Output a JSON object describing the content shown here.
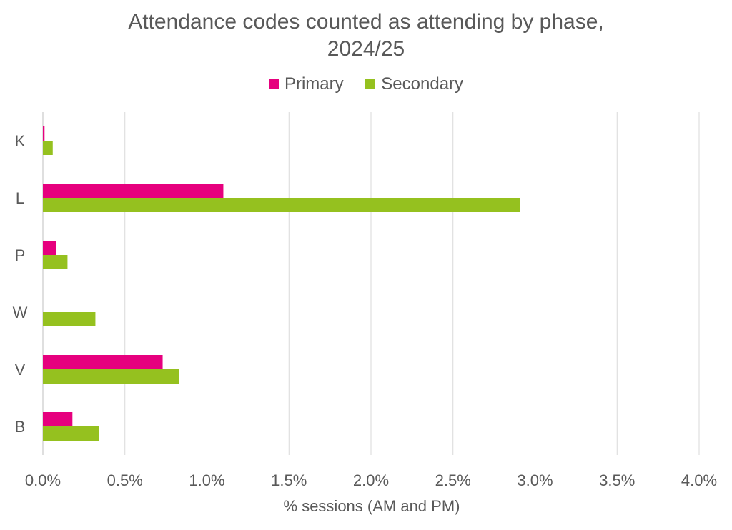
{
  "chart_data": {
    "type": "bar",
    "orientation": "horizontal",
    "title_lines": [
      "Attendance codes counted as attending by phase,",
      "2024/25"
    ],
    "xlabel": "% sessions (AM and PM)",
    "ylabel": "",
    "categories": [
      "K",
      "L",
      "P",
      "W",
      "V",
      "B"
    ],
    "series": [
      {
        "name": "Primary",
        "color": "#e6007e",
        "values": [
          0.01,
          1.1,
          0.08,
          0.0,
          0.73,
          0.18
        ]
      },
      {
        "name": "Secondary",
        "color": "#95c11f",
        "values": [
          0.06,
          2.91,
          0.15,
          0.32,
          0.83,
          0.34
        ]
      }
    ],
    "xlim": [
      0,
      4.0
    ],
    "xticks": [
      "0.0%",
      "0.5%",
      "1.0%",
      "1.5%",
      "2.0%",
      "2.5%",
      "3.0%",
      "3.5%",
      "4.0%"
    ],
    "xtick_values": [
      0,
      0.5,
      1.0,
      1.5,
      2.0,
      2.5,
      3.0,
      3.5,
      4.0
    ],
    "grid": "vertical",
    "legend_position": "top"
  }
}
